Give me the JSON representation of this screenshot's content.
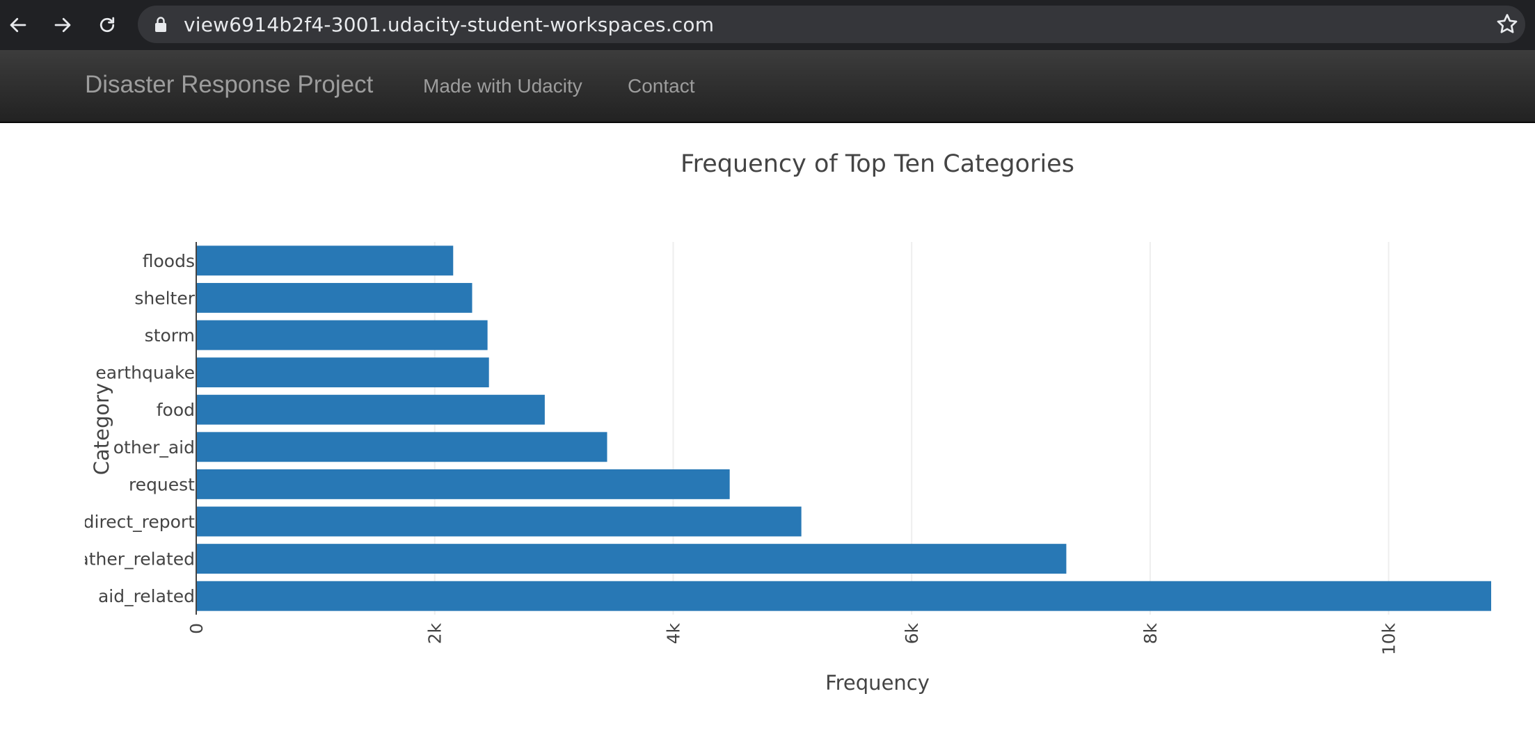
{
  "browser": {
    "url": "view6914b2f4-3001.udacity-student-workspaces.com",
    "icons": [
      "back-arrow-icon",
      "forward-arrow-icon",
      "reload-icon",
      "lock-icon",
      "star-icon"
    ]
  },
  "navbar": {
    "brand": "Disaster Response Project",
    "links": [
      "Made with Udacity",
      "Contact"
    ],
    "colors": {
      "background_top": "#3c3c3c",
      "background_bottom": "#222222",
      "text": "#9d9d9d"
    }
  },
  "chart_data": {
    "type": "bar",
    "orientation": "horizontal",
    "title": "Frequency of Top Ten Categories",
    "xlabel": "Frequency",
    "ylabel": "Category",
    "categories": [
      "aid_related",
      "weather_related",
      "direct_report",
      "request",
      "other_aid",
      "food",
      "earthquake",
      "storm",
      "shelter",
      "floods"
    ],
    "values": [
      10860,
      7297,
      5075,
      4474,
      3446,
      2923,
      2455,
      2443,
      2314,
      2155
    ],
    "xlim": [
      0,
      10860
    ],
    "xticks": [
      0,
      2000,
      4000,
      6000,
      8000,
      10000
    ],
    "xtick_labels": [
      "0",
      "2k",
      "4k",
      "6k",
      "8k",
      "10k"
    ],
    "grid": true,
    "bar_color": "#2878b5"
  }
}
